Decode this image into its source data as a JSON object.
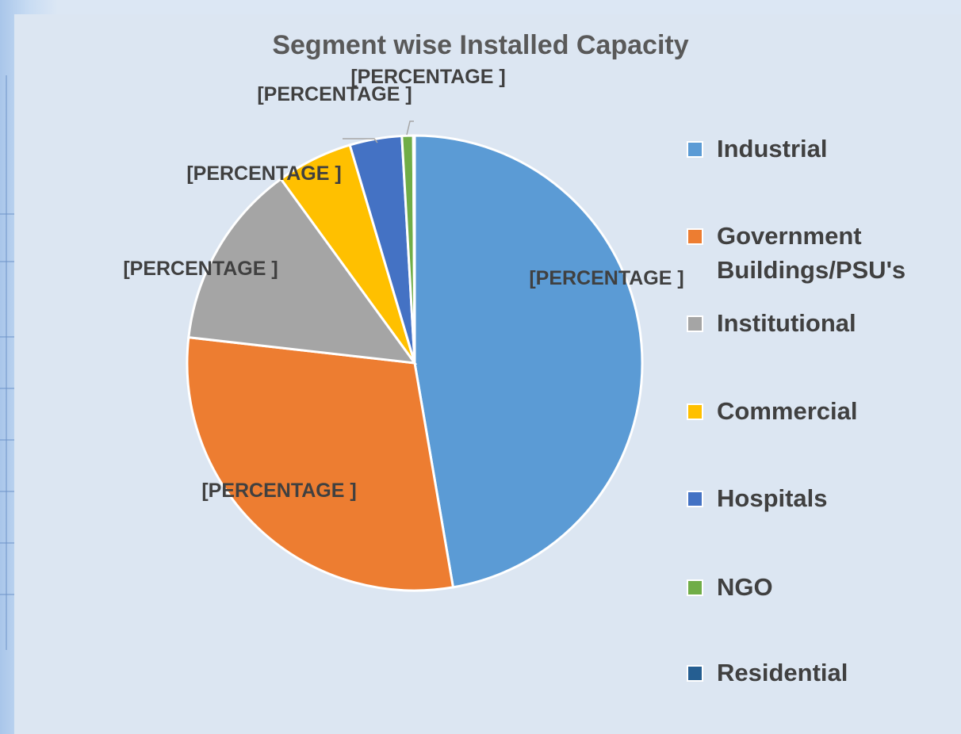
{
  "chart_data": {
    "type": "pie",
    "title": "Segment wise Installed Capacity",
    "categories": [
      "Industrial",
      "Government Buildings/PSU's",
      "Institutional",
      "Commercial",
      "Hospitals",
      "NGO",
      "Residential"
    ],
    "values": [
      47.3,
      29.5,
      13.2,
      5.4,
      3.7,
      0.8,
      0.1
    ],
    "value_labels": [
      "[PERCENTAGE ]",
      "[PERCENTAGE ]",
      "[PERCENTAGE ]",
      "[PERCENTAGE ]",
      "[PERCENTAGE ]",
      "[PERCENTAGE ]",
      null
    ],
    "colors": [
      "#5b9bd5",
      "#ed7d31",
      "#a5a5a5",
      "#ffc000",
      "#4472c4",
      "#70ad47",
      "#255e91"
    ],
    "legend": "right"
  }
}
